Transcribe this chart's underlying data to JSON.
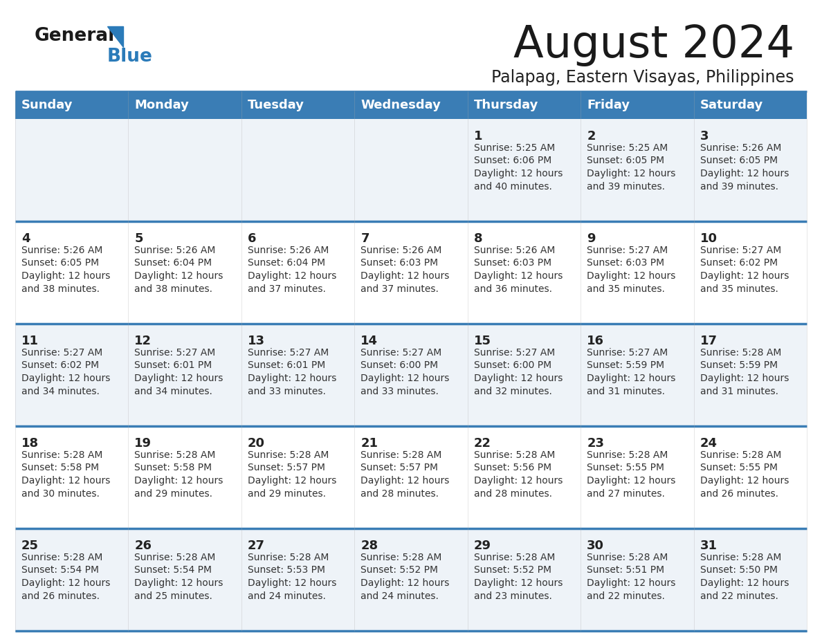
{
  "title": "August 2024",
  "subtitle": "Palapag, Eastern Visayas, Philippines",
  "days_of_week": [
    "Sunday",
    "Monday",
    "Tuesday",
    "Wednesday",
    "Thursday",
    "Friday",
    "Saturday"
  ],
  "header_bg": "#3a7db5",
  "header_text": "#ffffff",
  "row_bg_odd": "#eef3f8",
  "row_bg_even": "#ffffff",
  "cell_text_color": "#333333",
  "day_num_color": "#222222",
  "border_color": "#3a7db5",
  "logo_general_color": "#1a1a1a",
  "logo_blue_color": "#2b7bb9",
  "calendar_data": [
    [
      {
        "day": "",
        "sunrise": "",
        "sunset": "",
        "daylight": ""
      },
      {
        "day": "",
        "sunrise": "",
        "sunset": "",
        "daylight": ""
      },
      {
        "day": "",
        "sunrise": "",
        "sunset": "",
        "daylight": ""
      },
      {
        "day": "",
        "sunrise": "",
        "sunset": "",
        "daylight": ""
      },
      {
        "day": "1",
        "sunrise": "5:25 AM",
        "sunset": "6:06 PM",
        "daylight": "12 hours and 40 minutes."
      },
      {
        "day": "2",
        "sunrise": "5:25 AM",
        "sunset": "6:05 PM",
        "daylight": "12 hours and 39 minutes."
      },
      {
        "day": "3",
        "sunrise": "5:26 AM",
        "sunset": "6:05 PM",
        "daylight": "12 hours and 39 minutes."
      }
    ],
    [
      {
        "day": "4",
        "sunrise": "5:26 AM",
        "sunset": "6:05 PM",
        "daylight": "12 hours and 38 minutes."
      },
      {
        "day": "5",
        "sunrise": "5:26 AM",
        "sunset": "6:04 PM",
        "daylight": "12 hours and 38 minutes."
      },
      {
        "day": "6",
        "sunrise": "5:26 AM",
        "sunset": "6:04 PM",
        "daylight": "12 hours and 37 minutes."
      },
      {
        "day": "7",
        "sunrise": "5:26 AM",
        "sunset": "6:03 PM",
        "daylight": "12 hours and 37 minutes."
      },
      {
        "day": "8",
        "sunrise": "5:26 AM",
        "sunset": "6:03 PM",
        "daylight": "12 hours and 36 minutes."
      },
      {
        "day": "9",
        "sunrise": "5:27 AM",
        "sunset": "6:03 PM",
        "daylight": "12 hours and 35 minutes."
      },
      {
        "day": "10",
        "sunrise": "5:27 AM",
        "sunset": "6:02 PM",
        "daylight": "12 hours and 35 minutes."
      }
    ],
    [
      {
        "day": "11",
        "sunrise": "5:27 AM",
        "sunset": "6:02 PM",
        "daylight": "12 hours and 34 minutes."
      },
      {
        "day": "12",
        "sunrise": "5:27 AM",
        "sunset": "6:01 PM",
        "daylight": "12 hours and 34 minutes."
      },
      {
        "day": "13",
        "sunrise": "5:27 AM",
        "sunset": "6:01 PM",
        "daylight": "12 hours and 33 minutes."
      },
      {
        "day": "14",
        "sunrise": "5:27 AM",
        "sunset": "6:00 PM",
        "daylight": "12 hours and 33 minutes."
      },
      {
        "day": "15",
        "sunrise": "5:27 AM",
        "sunset": "6:00 PM",
        "daylight": "12 hours and 32 minutes."
      },
      {
        "day": "16",
        "sunrise": "5:27 AM",
        "sunset": "5:59 PM",
        "daylight": "12 hours and 31 minutes."
      },
      {
        "day": "17",
        "sunrise": "5:28 AM",
        "sunset": "5:59 PM",
        "daylight": "12 hours and 31 minutes."
      }
    ],
    [
      {
        "day": "18",
        "sunrise": "5:28 AM",
        "sunset": "5:58 PM",
        "daylight": "12 hours and 30 minutes."
      },
      {
        "day": "19",
        "sunrise": "5:28 AM",
        "sunset": "5:58 PM",
        "daylight": "12 hours and 29 minutes."
      },
      {
        "day": "20",
        "sunrise": "5:28 AM",
        "sunset": "5:57 PM",
        "daylight": "12 hours and 29 minutes."
      },
      {
        "day": "21",
        "sunrise": "5:28 AM",
        "sunset": "5:57 PM",
        "daylight": "12 hours and 28 minutes."
      },
      {
        "day": "22",
        "sunrise": "5:28 AM",
        "sunset": "5:56 PM",
        "daylight": "12 hours and 28 minutes."
      },
      {
        "day": "23",
        "sunrise": "5:28 AM",
        "sunset": "5:55 PM",
        "daylight": "12 hours and 27 minutes."
      },
      {
        "day": "24",
        "sunrise": "5:28 AM",
        "sunset": "5:55 PM",
        "daylight": "12 hours and 26 minutes."
      }
    ],
    [
      {
        "day": "25",
        "sunrise": "5:28 AM",
        "sunset": "5:54 PM",
        "daylight": "12 hours and 26 minutes."
      },
      {
        "day": "26",
        "sunrise": "5:28 AM",
        "sunset": "5:54 PM",
        "daylight": "12 hours and 25 minutes."
      },
      {
        "day": "27",
        "sunrise": "5:28 AM",
        "sunset": "5:53 PM",
        "daylight": "12 hours and 24 minutes."
      },
      {
        "day": "28",
        "sunrise": "5:28 AM",
        "sunset": "5:52 PM",
        "daylight": "12 hours and 24 minutes."
      },
      {
        "day": "29",
        "sunrise": "5:28 AM",
        "sunset": "5:52 PM",
        "daylight": "12 hours and 23 minutes."
      },
      {
        "day": "30",
        "sunrise": "5:28 AM",
        "sunset": "5:51 PM",
        "daylight": "12 hours and 22 minutes."
      },
      {
        "day": "31",
        "sunrise": "5:28 AM",
        "sunset": "5:50 PM",
        "daylight": "12 hours and 22 minutes."
      }
    ]
  ]
}
